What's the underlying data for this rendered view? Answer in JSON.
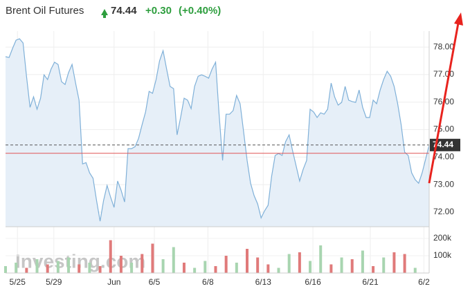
{
  "chart_data": {
    "type": "line",
    "title": "Brent Oil Futures",
    "last_price": 74.44,
    "change": "+0.30",
    "change_pct": "(+0.40%)",
    "reference_line": 74.14,
    "series": [
      {
        "name": "Brent Oil Futures",
        "color": "#7fb0d8",
        "values": [
          77.65,
          77.62,
          77.95,
          78.25,
          78.3,
          78.15,
          76.94,
          75.81,
          76.19,
          75.74,
          76.14,
          76.99,
          76.82,
          77.2,
          77.45,
          77.37,
          76.74,
          76.64,
          77.07,
          77.37,
          76.69,
          76.07,
          73.75,
          73.8,
          73.43,
          73.23,
          72.42,
          71.67,
          72.42,
          72.97,
          72.55,
          72.17,
          73.13,
          72.8,
          72.37,
          74.31,
          74.31,
          74.38,
          74.68,
          75.18,
          75.64,
          76.39,
          76.32,
          76.82,
          77.5,
          77.87,
          77.2,
          76.57,
          76.49,
          74.81,
          75.44,
          76.14,
          76.07,
          75.76,
          76.57,
          76.94,
          76.99,
          76.94,
          76.87,
          77.2,
          77.45,
          75.56,
          73.88,
          75.56,
          75.56,
          75.69,
          76.24,
          75.94,
          74.93,
          73.88,
          73.05,
          72.6,
          72.3,
          71.79,
          72.05,
          72.25,
          73.3,
          74.06,
          74.13,
          74.06,
          74.56,
          74.81,
          74.23,
          73.68,
          73.13,
          73.55,
          73.88,
          75.74,
          75.64,
          75.44,
          75.61,
          75.56,
          75.74,
          76.69,
          76.19,
          75.89,
          75.99,
          76.57,
          76.07,
          76.02,
          75.99,
          76.44,
          75.81,
          75.44,
          75.44,
          76.07,
          75.94,
          76.44,
          76.82,
          77.12,
          76.94,
          76.57,
          75.94,
          75.18,
          74.18,
          74.06,
          73.43,
          73.18,
          73.05,
          73.43,
          73.93,
          74.44
        ]
      }
    ],
    "xlim": [
      0,
      121
    ],
    "xticks": [
      {
        "value": 3.4,
        "label": "5/25"
      },
      {
        "value": 13.8,
        "label": "5/29"
      },
      {
        "value": 31,
        "label": "Jun"
      },
      {
        "value": 42.5,
        "label": "6/5"
      },
      {
        "value": 57.8,
        "label": "6/8"
      },
      {
        "value": 73.6,
        "label": "6/13"
      },
      {
        "value": 87.8,
        "label": "6/16"
      },
      {
        "value": 104.2,
        "label": "6/21"
      },
      {
        "value": 119.5,
        "label": "6/2"
      }
    ],
    "ylim": [
      71.47,
      78.58
    ],
    "yticks": [
      {
        "value": 72,
        "label": "72.00"
      },
      {
        "value": 73,
        "label": "73.00"
      },
      {
        "value": 74,
        "label": "74.00"
      },
      {
        "value": 75,
        "label": "75.00"
      },
      {
        "value": 76,
        "label": "76.00"
      },
      {
        "value": 77,
        "label": "77.00"
      },
      {
        "value": 78,
        "label": "78.00"
      }
    ],
    "grid": true,
    "volume": {
      "x": [
        0,
        3,
        6,
        9,
        12,
        15,
        18,
        21,
        24,
        27,
        30,
        33,
        36,
        39,
        42,
        45,
        48,
        51,
        54,
        57,
        60,
        63,
        66,
        69,
        72,
        75,
        78,
        81,
        84,
        87,
        90,
        93,
        96,
        99,
        102,
        105,
        108,
        111,
        114,
        117
      ],
      "values": [
        40000,
        60000,
        30000,
        80000,
        50000,
        70000,
        90000,
        50000,
        60000,
        40000,
        190000,
        100000,
        60000,
        110000,
        170000,
        80000,
        150000,
        60000,
        30000,
        70000,
        40000,
        100000,
        60000,
        140000,
        90000,
        50000,
        30000,
        110000,
        120000,
        70000,
        160000,
        50000,
        90000,
        80000,
        130000,
        40000,
        90000,
        120000,
        110000,
        30000
      ],
      "colors": [
        "#a8d5b0",
        "#a8d5b0",
        "#e07a7a",
        "#a8d5b0",
        "#e07a7a",
        "#a8d5b0",
        "#a8d5b0",
        "#e07a7a",
        "#a8d5b0",
        "#e07a7a",
        "#e07a7a",
        "#e07a7a",
        "#a8d5b0",
        "#e07a7a",
        "#e07a7a",
        "#a8d5b0",
        "#a8d5b0",
        "#e07a7a",
        "#a8d5b0",
        "#a8d5b0",
        "#e07a7a",
        "#e07a7a",
        "#a8d5b0",
        "#e07a7a",
        "#e07a7a",
        "#e07a7a",
        "#a8d5b0",
        "#a8d5b0",
        "#e07a7a",
        "#a8d5b0",
        "#a8d5b0",
        "#e07a7a",
        "#a8d5b0",
        "#e07a7a",
        "#a8d5b0",
        "#e07a7a",
        "#a8d5b0",
        "#e07a7a",
        "#e07a7a",
        "#a8d5b0"
      ],
      "ylim": [
        0,
        240000
      ],
      "yticks": [
        {
          "value": 100000,
          "label": "100k"
        },
        {
          "value": 200000,
          "label": "200k"
        }
      ]
    },
    "watermark": "Investing.com"
  }
}
